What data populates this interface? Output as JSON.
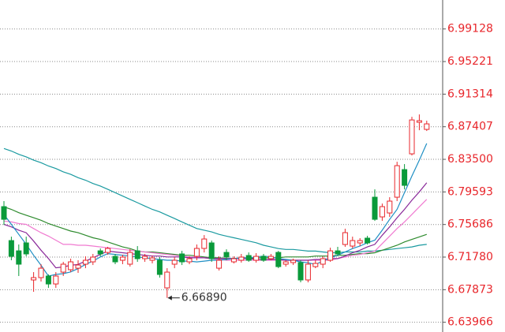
{
  "chart_data": {
    "type": "candlestick",
    "ylim": [
      6.628,
      7.026
    ],
    "yticks": [
      6.63966,
      6.67873,
      {
        "value": 6.7178,
        "label": "6.71780"
      },
      6.75686,
      6.79593,
      {
        "value": 6.835,
        "label": "6.83500"
      },
      6.87407,
      6.91314,
      6.95221,
      6.99128
    ],
    "grid": true,
    "up_color": "#e8262b",
    "down_color": "#0a9a3a",
    "tick_color": "#e8262b",
    "annotation": "6.66890",
    "candles": {
      "open": [
        6.7783,
        6.7376,
        6.7253,
        6.7348,
        6.6904,
        6.6932,
        6.6951,
        6.6856,
        6.6998,
        6.7027,
        6.7045,
        6.7093,
        6.7121,
        6.7253,
        6.7234,
        6.7187,
        6.714,
        6.7093,
        6.7253,
        6.7159,
        6.714,
        6.714,
        6.6809,
        6.7093,
        6.7216,
        6.7121,
        6.7187,
        6.7282,
        6.7348,
        6.7045,
        6.7234,
        6.7121,
        6.714,
        6.7197,
        6.714,
        6.7187,
        6.7159,
        6.7234,
        6.7093,
        6.7112,
        6.7112,
        6.6904,
        6.7064,
        6.7093,
        6.714,
        6.7253,
        6.7329,
        6.731,
        6.7348,
        6.7405,
        6.7896,
        6.766,
        6.7707,
        6.7896,
        6.8227,
        6.8416,
        6.8794,
        6.8709
      ],
      "high": [
        6.7849,
        6.7423,
        6.7329,
        6.7423,
        6.6998,
        6.7093,
        6.697,
        6.6998,
        6.7121,
        6.7159,
        6.714,
        6.7187,
        6.7216,
        6.7282,
        6.7301,
        6.7216,
        6.7206,
        6.7272,
        6.731,
        6.7216,
        6.7197,
        6.7178,
        6.7045,
        6.7178,
        6.7253,
        6.7187,
        6.7329,
        6.7442,
        6.7376,
        6.7187,
        6.7272,
        6.7187,
        6.7216,
        6.7234,
        6.7225,
        6.7216,
        6.7216,
        6.7253,
        6.714,
        6.7159,
        6.714,
        6.714,
        6.714,
        6.7187,
        6.7291,
        6.7301,
        6.7518,
        6.7423,
        6.7405,
        6.7433,
        6.799,
        6.782,
        6.7896,
        6.8321,
        6.8293,
        6.886,
        6.8888,
        6.8813
      ],
      "low": [
        6.7565,
        6.714,
        6.6951,
        6.7187,
        6.6762,
        6.6885,
        6.6809,
        6.6809,
        6.6951,
        6.6998,
        6.6989,
        6.7045,
        6.7083,
        6.7187,
        6.7206,
        6.7093,
        6.7093,
        6.7064,
        6.7121,
        6.7121,
        6.7102,
        6.6932,
        6.6689,
        6.7045,
        6.7083,
        6.7093,
        6.714,
        6.7234,
        6.7121,
        6.7017,
        6.714,
        6.7102,
        6.7112,
        6.7121,
        6.7112,
        6.7121,
        6.714,
        6.7045,
        6.7064,
        6.7083,
        6.6875,
        6.6875,
        6.7045,
        6.7045,
        6.7121,
        6.7187,
        6.7301,
        6.7282,
        6.731,
        6.7329,
        6.7612,
        6.7612,
        6.766,
        6.7849,
        6.799,
        6.8397,
        6.8699,
        6.869
      ],
      "close": [
        6.7631,
        6.7187,
        6.7093,
        6.7216,
        6.6932,
        6.7045,
        6.6856,
        6.6951,
        6.7093,
        6.7121,
        6.7083,
        6.714,
        6.7178,
        6.7216,
        6.7282,
        6.7121,
        6.7178,
        6.7234,
        6.7159,
        6.7187,
        6.7168,
        6.697,
        6.6998,
        6.714,
        6.7121,
        6.7159,
        6.7282,
        6.7395,
        6.7159,
        6.714,
        6.7178,
        6.7159,
        6.7178,
        6.714,
        6.7187,
        6.714,
        6.7187,
        6.7064,
        6.7121,
        6.714,
        6.6904,
        6.7093,
        6.7102,
        6.7159,
        6.7253,
        6.7216,
        6.7471,
        6.7376,
        6.7376,
        6.7348,
        6.7631,
        6.7783,
        6.7849,
        6.8274,
        6.8038,
        6.8822,
        6.8813,
        6.8775
      ]
    },
    "series": [
      {
        "color": "#1a9aa0",
        "values": [
          6.848,
          6.845,
          6.841,
          6.838,
          6.834,
          6.831,
          6.827,
          6.824,
          6.82,
          6.817,
          6.813,
          6.81,
          6.806,
          6.803,
          6.799,
          6.795,
          6.791,
          6.787,
          6.783,
          6.779,
          6.775,
          6.772,
          6.768,
          6.764,
          6.76,
          6.756,
          6.752,
          6.75,
          6.748,
          6.745,
          6.743,
          6.741,
          6.739,
          6.737,
          6.735,
          6.732,
          6.73,
          6.728,
          6.727,
          6.727,
          6.726,
          6.725,
          6.725,
          6.724,
          6.723,
          6.723,
          6.724,
          6.724,
          6.724,
          6.725,
          6.725,
          6.726,
          6.727,
          6.728,
          6.729,
          6.73,
          6.732,
          6.733
        ]
      },
      {
        "color": "#2e8b2e",
        "values": [
          6.778,
          6.775,
          6.771,
          6.768,
          6.765,
          6.762,
          6.758,
          6.755,
          6.752,
          6.749,
          6.747,
          6.744,
          6.741,
          6.739,
          6.736,
          6.733,
          6.73,
          6.728,
          6.725,
          6.724,
          6.724,
          6.723,
          6.722,
          6.721,
          6.72,
          6.72,
          6.719,
          6.718,
          6.717,
          6.717,
          6.716,
          6.716,
          6.716,
          6.716,
          6.717,
          6.717,
          6.717,
          6.717,
          6.718,
          6.718,
          6.718,
          6.718,
          6.719,
          6.719,
          6.719,
          6.72,
          6.72,
          6.721,
          6.722,
          6.722,
          6.723,
          6.726,
          6.729,
          6.732,
          6.736,
          6.739,
          6.742,
          6.745
        ]
      },
      {
        "color": "#f07ad0",
        "values": [
          6.761,
          6.76,
          6.758,
          6.757,
          6.752,
          6.747,
          6.743,
          6.738,
          6.733,
          6.733,
          6.732,
          6.732,
          6.731,
          6.73,
          6.729,
          6.728,
          6.727,
          6.726,
          6.725,
          6.724,
          6.723,
          6.722,
          6.721,
          6.72,
          6.719,
          6.718,
          6.718,
          6.717,
          6.716,
          6.715,
          6.714,
          6.714,
          6.714,
          6.714,
          6.714,
          6.714,
          6.714,
          6.714,
          6.714,
          6.714,
          6.714,
          6.714,
          6.714,
          6.714,
          6.714,
          6.716,
          6.718,
          6.72,
          6.721,
          6.723,
          6.725,
          6.734,
          6.743,
          6.752,
          6.76,
          6.769,
          6.778,
          6.787
        ]
      },
      {
        "color": "#8a2a9a",
        "values": [
          6.757,
          6.754,
          6.75,
          6.747,
          6.737,
          6.726,
          6.716,
          6.705,
          6.706,
          6.708,
          6.709,
          6.713,
          6.717,
          6.721,
          6.725,
          6.724,
          6.723,
          6.722,
          6.721,
          6.72,
          6.719,
          6.719,
          6.718,
          6.718,
          6.718,
          6.717,
          6.717,
          6.717,
          6.716,
          6.716,
          6.716,
          6.716,
          6.716,
          6.716,
          6.715,
          6.715,
          6.715,
          6.715,
          6.714,
          6.714,
          6.714,
          6.714,
          6.715,
          6.715,
          6.716,
          6.716,
          6.719,
          6.723,
          6.726,
          6.73,
          6.733,
          6.744,
          6.754,
          6.765,
          6.775,
          6.786,
          6.796,
          6.807
        ]
      },
      {
        "color": "#1f8fc4",
        "values": [
          6.769,
          6.757,
          6.745,
          6.733,
          6.72,
          6.708,
          6.695,
          6.697,
          6.698,
          6.7,
          6.704,
          6.709,
          6.713,
          6.718,
          6.722,
          6.721,
          6.72,
          6.719,
          6.718,
          6.717,
          6.716,
          6.715,
          6.714,
          6.714,
          6.713,
          6.713,
          6.712,
          6.713,
          6.714,
          6.714,
          6.715,
          6.716,
          6.717,
          6.717,
          6.718,
          6.719,
          6.718,
          6.716,
          6.715,
          6.714,
          6.712,
          6.711,
          6.709,
          6.713,
          6.717,
          6.72,
          6.724,
          6.728,
          6.731,
          6.735,
          6.738,
          6.75,
          6.763,
          6.775,
          6.795,
          6.815,
          6.834,
          6.854
        ]
      }
    ]
  }
}
